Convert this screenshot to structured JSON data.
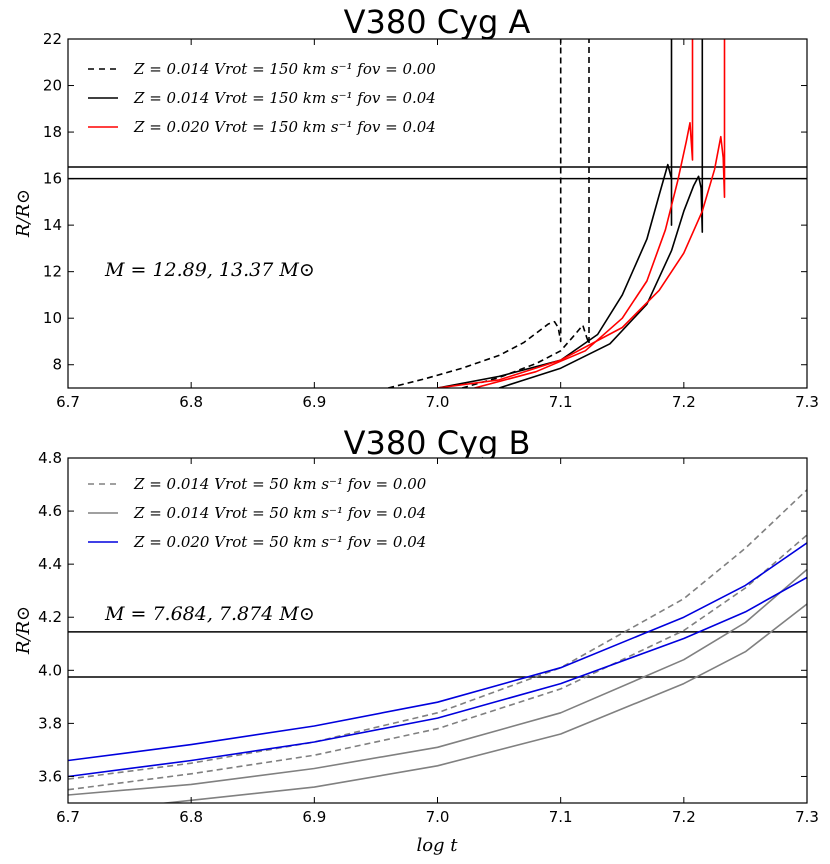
{
  "chart_data": [
    {
      "type": "line",
      "title": "V380 Cyg A",
      "xlabel": "",
      "ylabel": "R/R⊙",
      "xlim": [
        6.7,
        7.3
      ],
      "ylim": [
        7,
        22
      ],
      "xticks": [
        "6.7",
        "6.8",
        "6.9",
        "7.0",
        "7.1",
        "7.2",
        "7.3"
      ],
      "yticks": [
        "8",
        "10",
        "12",
        "14",
        "16",
        "18",
        "20",
        "22"
      ],
      "mass_label": "M = 12.89,  13.37 M⊙",
      "hlines": [
        16.0,
        16.5
      ],
      "legend": [
        {
          "text": "Z = 0.014  Vrot = 150 km s⁻¹  fov = 0.00",
          "color": "#000000",
          "dash": true
        },
        {
          "text": "Z = 0.014  Vrot = 150 km s⁻¹  fov = 0.04",
          "color": "#000000",
          "dash": false
        },
        {
          "text": "Z = 0.020  Vrot = 150 km s⁻¹  fov = 0.04",
          "color": "#ff0000",
          "dash": false
        }
      ],
      "series": [
        {
          "name": "Z=0.014 fov=0.00 (12.89)",
          "color": "#000000",
          "dash": true,
          "points": [
            [
              6.96,
              7.0
            ],
            [
              6.99,
              7.4
            ],
            [
              7.02,
              7.85
            ],
            [
              7.05,
              8.4
            ],
            [
              7.07,
              8.95
            ],
            [
              7.09,
              9.75
            ],
            [
              7.095,
              9.85
            ],
            [
              7.098,
              9.6
            ],
            [
              7.1,
              9.0
            ],
            [
              7.1,
              22
            ]
          ]
        },
        {
          "name": "Z=0.014 fov=0.00 (13.37)",
          "color": "#000000",
          "dash": true,
          "points": [
            [
              7.02,
              7.0
            ],
            [
              7.05,
              7.45
            ],
            [
              7.08,
              8.05
            ],
            [
              7.1,
              8.6
            ],
            [
              7.11,
              9.2
            ],
            [
              7.118,
              9.7
            ],
            [
              7.121,
              9.2
            ],
            [
              7.123,
              8.9
            ],
            [
              7.123,
              22
            ]
          ]
        },
        {
          "name": "Z=0.014 fov=0.04 (12.89)",
          "color": "#000000",
          "dash": false,
          "points": [
            [
              7.0,
              7.0
            ],
            [
              7.05,
              7.5
            ],
            [
              7.1,
              8.2
            ],
            [
              7.13,
              9.3
            ],
            [
              7.15,
              11.0
            ],
            [
              7.17,
              13.4
            ],
            [
              7.18,
              15.3
            ],
            [
              7.187,
              16.6
            ],
            [
              7.19,
              16.0
            ],
            [
              7.19,
              14.0
            ],
            [
              7.19,
              22
            ]
          ]
        },
        {
          "name": "Z=0.014 fov=0.04 (13.37)",
          "color": "#000000",
          "dash": false,
          "points": [
            [
              7.05,
              7.0
            ],
            [
              7.1,
              7.85
            ],
            [
              7.14,
              8.9
            ],
            [
              7.17,
              10.6
            ],
            [
              7.19,
              12.9
            ],
            [
              7.2,
              14.6
            ],
            [
              7.208,
              15.7
            ],
            [
              7.212,
              16.1
            ],
            [
              7.214,
              15.6
            ],
            [
              7.215,
              13.7
            ],
            [
              7.215,
              22
            ]
          ]
        },
        {
          "name": "Z=0.020 fov=0.04 (12.89)",
          "color": "#ff0000",
          "dash": false,
          "points": [
            [
              7.03,
              7.0
            ],
            [
              7.08,
              7.7
            ],
            [
              7.12,
              8.6
            ],
            [
              7.15,
              10.0
            ],
            [
              7.17,
              11.6
            ],
            [
              7.185,
              13.8
            ],
            [
              7.195,
              15.9
            ],
            [
              7.202,
              17.6
            ],
            [
              7.205,
              18.4
            ],
            [
              7.207,
              16.8
            ],
            [
              7.207,
              22
            ]
          ]
        },
        {
          "name": "Z=0.020 fov=0.04 (13.37)",
          "color": "#ff0000",
          "dash": false,
          "points": [
            [
              7.0,
              7.0
            ],
            [
              7.05,
              7.35
            ],
            [
              7.1,
              8.2
            ],
            [
              7.15,
              9.6
            ],
            [
              7.18,
              11.2
            ],
            [
              7.2,
              12.8
            ],
            [
              7.215,
              14.6
            ],
            [
              7.225,
              16.4
            ],
            [
              7.23,
              17.8
            ],
            [
              7.232,
              16.9
            ],
            [
              7.233,
              15.2
            ],
            [
              7.233,
              22
            ]
          ]
        }
      ]
    },
    {
      "type": "line",
      "title": "V380 Cyg B",
      "xlabel": "log t",
      "ylabel": "R/R⊙",
      "xlim": [
        6.7,
        7.3
      ],
      "ylim": [
        3.5,
        4.8
      ],
      "xticks": [
        "6.7",
        "6.8",
        "6.9",
        "7.0",
        "7.1",
        "7.2",
        "7.3"
      ],
      "yticks": [
        "3.6",
        "3.8",
        "4.0",
        "4.2",
        "4.4",
        "4.6",
        "4.8"
      ],
      "mass_label": "M = 7.684,  7.874 M⊙",
      "hlines": [
        3.975,
        4.145
      ],
      "legend": [
        {
          "text": "Z = 0.014  Vrot = 50 km s⁻¹  fov = 0.00",
          "color": "#808080",
          "dash": true
        },
        {
          "text": "Z = 0.014  Vrot = 50 km s⁻¹  fov = 0.04",
          "color": "#808080",
          "dash": false
        },
        {
          "text": "Z = 0.020  Vrot = 50 km s⁻¹  fov = 0.04",
          "color": "#0000dd",
          "dash": false
        }
      ],
      "series": [
        {
          "name": "Z=0.014 fov=0.00 (7.874)",
          "color": "#808080",
          "dash": true,
          "points": [
            [
              6.7,
              3.59
            ],
            [
              6.8,
              3.65
            ],
            [
              6.9,
              3.73
            ],
            [
              7.0,
              3.84
            ],
            [
              7.1,
              4.01
            ],
            [
              7.2,
              4.27
            ],
            [
              7.25,
              4.46
            ],
            [
              7.3,
              4.68
            ]
          ]
        },
        {
          "name": "Z=0.014 fov=0.00 (7.684)",
          "color": "#808080",
          "dash": true,
          "points": [
            [
              6.7,
              3.55
            ],
            [
              6.8,
              3.61
            ],
            [
              6.9,
              3.68
            ],
            [
              7.0,
              3.78
            ],
            [
              7.1,
              3.93
            ],
            [
              7.2,
              4.15
            ],
            [
              7.25,
              4.31
            ],
            [
              7.3,
              4.51
            ]
          ]
        },
        {
          "name": "Z=0.014 fov=0.04 (7.874)",
          "color": "#808080",
          "dash": false,
          "points": [
            [
              6.7,
              3.53
            ],
            [
              6.8,
              3.57
            ],
            [
              6.9,
              3.63
            ],
            [
              7.0,
              3.71
            ],
            [
              7.1,
              3.84
            ],
            [
              7.2,
              4.04
            ],
            [
              7.25,
              4.18
            ],
            [
              7.3,
              4.38
            ]
          ]
        },
        {
          "name": "Z=0.014 fov=0.04 (7.684)",
          "color": "#808080",
          "dash": false,
          "points": [
            [
              6.7,
              3.46
            ],
            [
              6.8,
              3.51
            ],
            [
              6.9,
              3.56
            ],
            [
              7.0,
              3.64
            ],
            [
              7.1,
              3.76
            ],
            [
              7.2,
              3.95
            ],
            [
              7.25,
              4.07
            ],
            [
              7.3,
              4.25
            ]
          ]
        },
        {
          "name": "Z=0.020 fov=0.04 (7.874)",
          "color": "#0000dd",
          "dash": false,
          "points": [
            [
              6.7,
              3.66
            ],
            [
              6.8,
              3.72
            ],
            [
              6.9,
              3.79
            ],
            [
              7.0,
              3.88
            ],
            [
              7.1,
              4.01
            ],
            [
              7.2,
              4.2
            ],
            [
              7.25,
              4.32
            ],
            [
              7.3,
              4.48
            ]
          ]
        },
        {
          "name": "Z=0.020 fov=0.04 (7.684)",
          "color": "#0000dd",
          "dash": false,
          "points": [
            [
              6.7,
              3.6
            ],
            [
              6.8,
              3.66
            ],
            [
              6.9,
              3.73
            ],
            [
              7.0,
              3.82
            ],
            [
              7.1,
              3.95
            ],
            [
              7.2,
              4.12
            ],
            [
              7.25,
              4.22
            ],
            [
              7.3,
              4.35
            ]
          ]
        }
      ]
    }
  ]
}
